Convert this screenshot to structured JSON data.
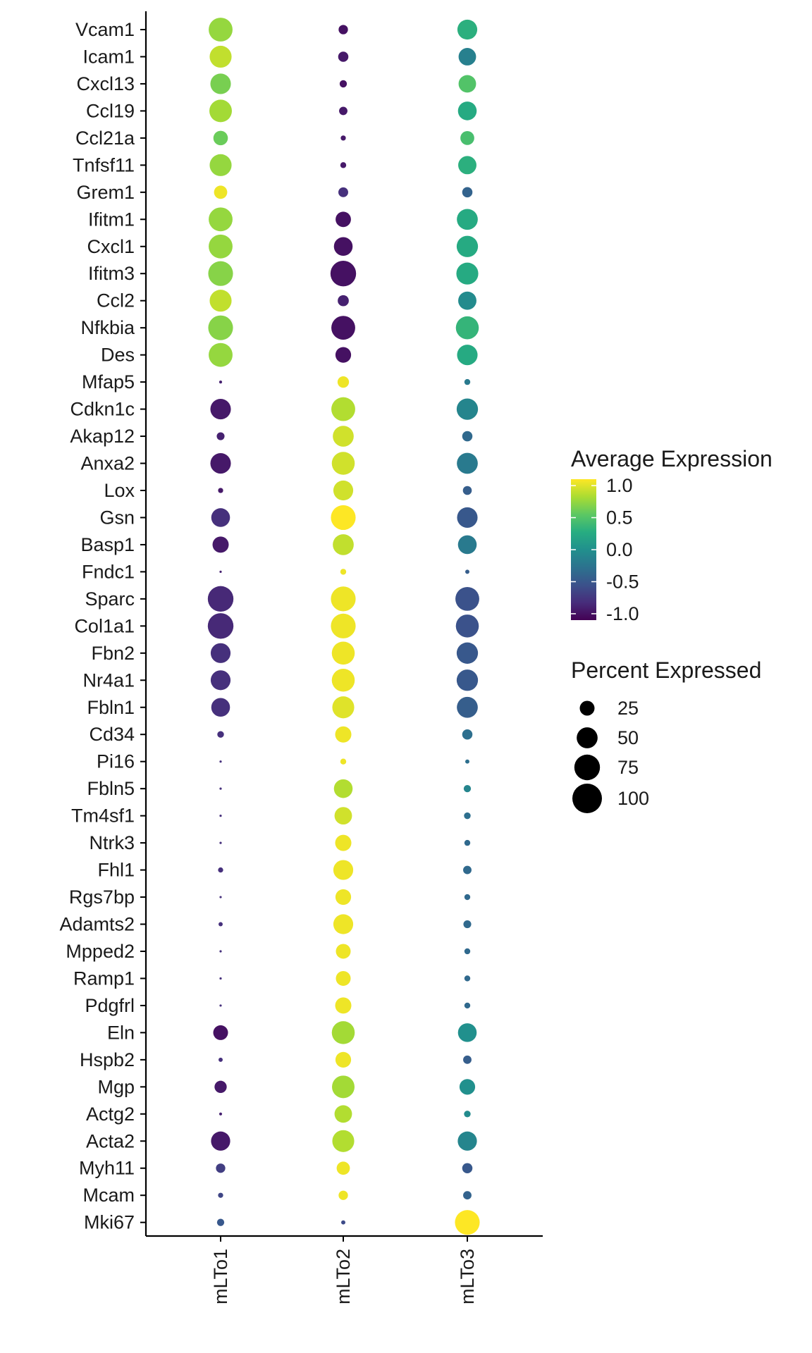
{
  "chart_data": {
    "type": "dotplot",
    "title": "",
    "xlabel": "",
    "ylabel": "",
    "x_categories": [
      "mLTo1",
      "mLTo2",
      "mLTo3"
    ],
    "genes": [
      "Vcam1",
      "Icam1",
      "Cxcl13",
      "Ccl19",
      "Ccl21a",
      "Tnfsf11",
      "Grem1",
      "Ifitm1",
      "Cxcl1",
      "Ifitm3",
      "Ccl2",
      "Nfkbia",
      "Des",
      "Mfap5",
      "Cdkn1c",
      "Akap12",
      "Anxa2",
      "Lox",
      "Gsn",
      "Basp1",
      "Fndc1",
      "Sparc",
      "Col1a1",
      "Fbn2",
      "Nr4a1",
      "Fbln1",
      "Cd34",
      "Pi16",
      "Fbln5",
      "Tm4sf1",
      "Ntrk3",
      "Fhl1",
      "Rgs7bp",
      "Adamts2",
      "Mpped2",
      "Ramp1",
      "Pdgfrl",
      "Eln",
      "Hspb2",
      "Mgp",
      "Actg2",
      "Acta2",
      "Myh11",
      "Mcam",
      "Mki67"
    ],
    "avg_expression": [
      [
        0.75,
        -1.0,
        0.3
      ],
      [
        0.9,
        -0.95,
        -0.15
      ],
      [
        0.65,
        -1.0,
        0.5
      ],
      [
        0.8,
        -0.95,
        0.25
      ],
      [
        0.6,
        -0.95,
        0.45
      ],
      [
        0.75,
        -0.95,
        0.3
      ],
      [
        1.05,
        -0.8,
        -0.4
      ],
      [
        0.75,
        -1.0,
        0.25
      ],
      [
        0.75,
        -1.0,
        0.25
      ],
      [
        0.7,
        -1.0,
        0.25
      ],
      [
        0.9,
        -0.9,
        -0.05
      ],
      [
        0.7,
        -1.0,
        0.35
      ],
      [
        0.75,
        -1.0,
        0.25
      ],
      [
        -0.9,
        1.05,
        -0.2
      ],
      [
        -0.95,
        0.85,
        -0.1
      ],
      [
        -0.9,
        0.95,
        -0.35
      ],
      [
        -0.95,
        0.95,
        -0.2
      ],
      [
        -0.95,
        0.95,
        -0.45
      ],
      [
        -0.8,
        1.1,
        -0.5
      ],
      [
        -0.95,
        0.9,
        -0.2
      ],
      [
        -0.9,
        1.05,
        -0.45
      ],
      [
        -0.85,
        1.05,
        -0.55
      ],
      [
        -0.85,
        1.05,
        -0.55
      ],
      [
        -0.8,
        1.05,
        -0.5
      ],
      [
        -0.8,
        1.05,
        -0.5
      ],
      [
        -0.8,
        1.0,
        -0.45
      ],
      [
        -0.8,
        1.05,
        -0.3
      ],
      [
        -0.8,
        1.05,
        -0.3
      ],
      [
        -0.8,
        0.85,
        -0.1
      ],
      [
        -0.8,
        0.95,
        -0.3
      ],
      [
        -0.8,
        1.05,
        -0.35
      ],
      [
        -0.8,
        1.05,
        -0.35
      ],
      [
        -0.8,
        1.05,
        -0.35
      ],
      [
        -0.8,
        1.05,
        -0.35
      ],
      [
        -0.8,
        1.05,
        -0.35
      ],
      [
        -0.8,
        1.05,
        -0.35
      ],
      [
        -0.8,
        1.05,
        -0.35
      ],
      [
        -1.0,
        0.8,
        0.0
      ],
      [
        -0.8,
        1.05,
        -0.45
      ],
      [
        -0.95,
        0.8,
        0.0
      ],
      [
        -0.9,
        0.85,
        -0.05
      ],
      [
        -0.95,
        0.85,
        -0.1
      ],
      [
        -0.7,
        1.05,
        -0.5
      ],
      [
        -0.65,
        1.05,
        -0.4
      ],
      [
        -0.5,
        -0.6,
        1.1
      ]
    ],
    "pct_expressed": [
      [
        65,
        10,
        45
      ],
      [
        55,
        12,
        35
      ],
      [
        48,
        6,
        35
      ],
      [
        58,
        8,
        40
      ],
      [
        24,
        3,
        22
      ],
      [
        55,
        4,
        38
      ],
      [
        20,
        11,
        12
      ],
      [
        65,
        27,
        50
      ],
      [
        65,
        40,
        52
      ],
      [
        70,
        75,
        55
      ],
      [
        55,
        14,
        38
      ],
      [
        70,
        65,
        60
      ],
      [
        65,
        28,
        48
      ],
      [
        1,
        15,
        4
      ],
      [
        48,
        65,
        52
      ],
      [
        7,
        50,
        12
      ],
      [
        48,
        60,
        50
      ],
      [
        3,
        45,
        9
      ],
      [
        40,
        70,
        48
      ],
      [
        30,
        50,
        40
      ],
      [
        0.5,
        4,
        2
      ],
      [
        75,
        70,
        65
      ],
      [
        75,
        70,
        60
      ],
      [
        45,
        60,
        52
      ],
      [
        45,
        60,
        52
      ],
      [
        40,
        55,
        50
      ],
      [
        5,
        30,
        12
      ],
      [
        0.5,
        4,
        2
      ],
      [
        0.5,
        40,
        6
      ],
      [
        0.5,
        35,
        5
      ],
      [
        0.5,
        30,
        4
      ],
      [
        3,
        45,
        8
      ],
      [
        0.5,
        28,
        4
      ],
      [
        2,
        45,
        7
      ],
      [
        0.5,
        25,
        4
      ],
      [
        0.5,
        25,
        4
      ],
      [
        0.5,
        30,
        4
      ],
      [
        25,
        60,
        40
      ],
      [
        2,
        28,
        8
      ],
      [
        17,
        58,
        28
      ],
      [
        1,
        35,
        5
      ],
      [
        42,
        55,
        42
      ],
      [
        10,
        20,
        12
      ],
      [
        3,
        10,
        8
      ],
      [
        6,
        2,
        70
      ]
    ],
    "axis": {
      "x_position": "bottom",
      "x_tick_rotation": -90
    },
    "color_scale": {
      "palette": "viridis",
      "colors": [
        "#440154",
        "#472D7B",
        "#3B528B",
        "#2C728E",
        "#21908D",
        "#27AD81",
        "#5CC863",
        "#AADC32",
        "#FDE725"
      ],
      "domain": [
        -1.1,
        1.1
      ],
      "title": "Average Expression",
      "breaks": [
        1.0,
        0.5,
        0.0,
        -0.5,
        -1.0
      ],
      "labels": [
        "1.0",
        "0.5",
        "0.0",
        "-0.5",
        "-1.0"
      ]
    },
    "size_scale": {
      "title": "Percent Expressed",
      "breaks": [
        25,
        50,
        75,
        100
      ],
      "labels": [
        "25",
        "50",
        "75",
        "100"
      ],
      "max_value": 100
    }
  }
}
